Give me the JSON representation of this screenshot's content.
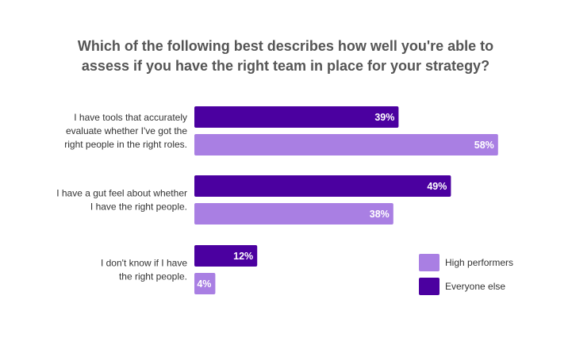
{
  "chart_data": {
    "type": "bar",
    "orientation": "horizontal",
    "title": "Which of the following best describes how well you're able to assess if you have the right team in place for your strategy?",
    "title_lines": [
      "Which of the following best describes how well you're able to",
      "assess if you have the right team in place for your strategy?"
    ],
    "categories": [
      "I have tools that accurately evaluate whether I've got the right people in the right roles.",
      "I have a gut feel about whether I have the right people.",
      "I don't know if I have the right people."
    ],
    "category_lines": [
      [
        "I have tools that accurately",
        "evaluate whether I've got the",
        "right people in the right roles."
      ],
      [
        "I have a gut feel about whether",
        "I have the right people."
      ],
      [
        "I don't know if I have",
        "the right people."
      ]
    ],
    "series": [
      {
        "name": "Everyone else",
        "values": [
          39,
          49,
          12
        ],
        "color": "#4B00A0"
      },
      {
        "name": "High performers",
        "values": [
          58,
          38,
          4
        ],
        "color": "#A97FE3"
      }
    ],
    "value_suffix": "%",
    "xlim": [
      0,
      100
    ],
    "legend": {
      "position": "right",
      "order": [
        "High performers",
        "Everyone else"
      ]
    },
    "grid": false
  }
}
